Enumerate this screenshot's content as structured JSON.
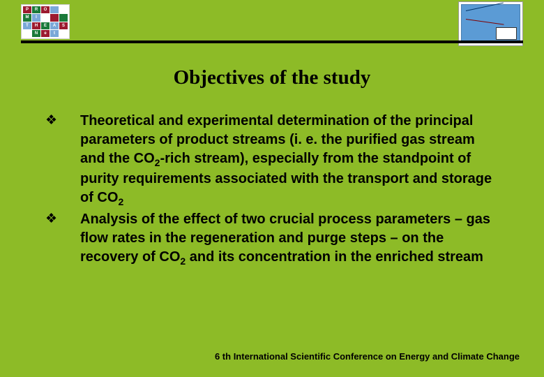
{
  "logo": {
    "cells": [
      {
        "t": "P",
        "bg": "#9c1b30"
      },
      {
        "t": "R",
        "bg": "#1b7a3a"
      },
      {
        "t": "O",
        "bg": "#9c1b30"
      },
      {
        "t": "",
        "bg": "#7aa8d8"
      },
      {
        "t": "",
        "bg": "#ffffff"
      },
      {
        "t": "M",
        "bg": "#1b7a3a"
      },
      {
        "t": "I",
        "bg": "#7aa8d8"
      },
      {
        "t": "",
        "bg": "#ffffff"
      },
      {
        "t": "",
        "bg": "#9c1b30"
      },
      {
        "t": "",
        "bg": "#1b7a3a"
      },
      {
        "t": "T",
        "bg": "#7aa8d8"
      },
      {
        "t": "H",
        "bg": "#9c1b30"
      },
      {
        "t": "E",
        "bg": "#1b7a3a"
      },
      {
        "t": "A",
        "bg": "#7aa8d8"
      },
      {
        "t": "S",
        "bg": "#9c1b30"
      },
      {
        "t": "",
        "bg": "#ffffff"
      },
      {
        "t": "N",
        "bg": "#1b7a3a"
      },
      {
        "t": "e",
        "bg": "#9c1b30"
      },
      {
        "t": "t",
        "bg": "#7aa8d8"
      },
      {
        "t": "",
        "bg": "#ffffff"
      }
    ]
  },
  "title": "Objectives of the study",
  "bullets": [
    {
      "marker": "❖",
      "text_html": "Theoretical and experimental determination of the principal parameters of product streams (i. e. the purified gas stream and the CO<sub>2</sub>-rich stream), especially from the standpoint of purity requirements associated with the transport and storage of CO<sub>2</sub>"
    },
    {
      "marker": "❖",
      "text_html": "Analysis of the effect of two crucial process parameters – gas flow rates in the regeneration and purge steps – on the recovery of CO<sub>2</sub> and its concentration in the enriched stream"
    }
  ],
  "footer": "6 th International Scientific Conference on Energy and Climate Change",
  "colors": {
    "slide_bg": "#8dbb27",
    "rule": "#000000",
    "thumb_plot_bg": "#5b9bd5"
  }
}
